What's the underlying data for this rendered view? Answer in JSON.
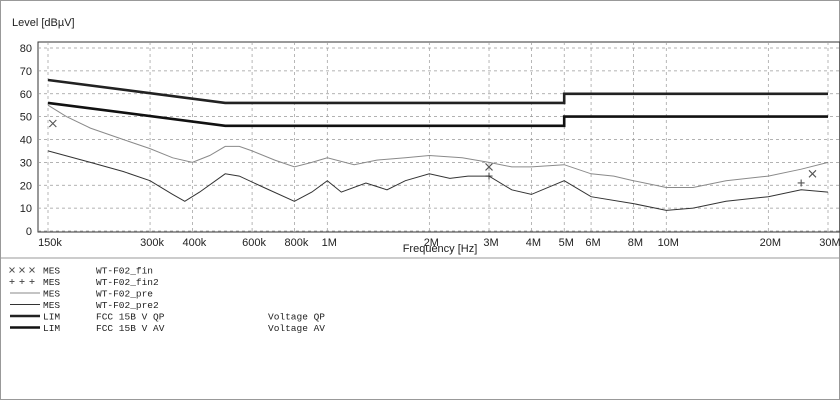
{
  "chart_data": {
    "type": "line",
    "ylabel": "Level [dBµV]",
    "xlabel": "Frequency [Hz]",
    "xscale": "log",
    "grid": true,
    "xlim": [
      150000,
      30000000
    ],
    "ylim": [
      0,
      80
    ],
    "yticks": [
      0,
      10,
      20,
      30,
      40,
      50,
      60,
      70,
      80
    ],
    "xticks": [
      {
        "value": 150000,
        "label": "150k"
      },
      {
        "value": 300000,
        "label": "300k"
      },
      {
        "value": 400000,
        "label": "400k"
      },
      {
        "value": 600000,
        "label": "600k"
      },
      {
        "value": 800000,
        "label": "800k"
      },
      {
        "value": 1000000,
        "label": "1M"
      },
      {
        "value": 2000000,
        "label": "2M"
      },
      {
        "value": 3000000,
        "label": "3M"
      },
      {
        "value": 4000000,
        "label": "4M"
      },
      {
        "value": 5000000,
        "label": "5M"
      },
      {
        "value": 6000000,
        "label": "6M"
      },
      {
        "value": 8000000,
        "label": "8M"
      },
      {
        "value": 10000000,
        "label": "10M"
      },
      {
        "value": 20000000,
        "label": "20M"
      },
      {
        "value": 30000000,
        "label": "30M"
      }
    ],
    "series": [
      {
        "name": "WT-F02_fin",
        "detector": "MES",
        "mark": "x",
        "color": "#555555",
        "x": [
          155000,
          3000000,
          27000000
        ],
        "values": [
          47,
          28,
          25
        ]
      },
      {
        "name": "WT-F02_fin2",
        "detector": "MES",
        "mark": "+",
        "color": "#555555",
        "x": [
          3000000,
          25000000
        ],
        "values": [
          24,
          21
        ]
      },
      {
        "name": "WT-F02_pre",
        "detector": "MES",
        "mark": "line",
        "color": "#8a8a8a",
        "x": [
          150000,
          170000,
          200000,
          250000,
          300000,
          350000,
          400000,
          450000,
          500000,
          550000,
          600000,
          700000,
          800000,
          900000,
          1000000,
          1200000,
          1400000,
          1700000,
          2000000,
          2500000,
          3000000,
          3500000,
          4000000,
          5000000,
          6000000,
          7000000,
          8000000,
          10000000,
          12000000,
          15000000,
          20000000,
          25000000,
          30000000
        ],
        "values": [
          55,
          50,
          45,
          40,
          36,
          32,
          30,
          33,
          37,
          37,
          35,
          31,
          28,
          30,
          32,
          29,
          31,
          32,
          33,
          32,
          30,
          28,
          28,
          29,
          25,
          24,
          22,
          19,
          19,
          22,
          24,
          27,
          30
        ]
      },
      {
        "name": "WT-F02_pre2",
        "detector": "MES",
        "mark": "line",
        "color": "#333333",
        "x": [
          150000,
          200000,
          250000,
          300000,
          350000,
          380000,
          420000,
          500000,
          550000,
          650000,
          800000,
          900000,
          1000000,
          1100000,
          1300000,
          1500000,
          1700000,
          2000000,
          2300000,
          2600000,
          3000000,
          3500000,
          4000000,
          5000000,
          6000000,
          8000000,
          10000000,
          12000000,
          15000000,
          20000000,
          25000000,
          30000000
        ],
        "values": [
          35,
          30,
          26,
          22,
          16,
          13,
          17,
          25,
          24,
          19,
          13,
          17,
          22,
          17,
          21,
          18,
          22,
          25,
          23,
          24,
          24,
          18,
          16,
          22,
          15,
          12,
          9,
          10,
          13,
          15,
          18,
          17
        ]
      },
      {
        "name": "FCC 15B V QP",
        "detector": "LIM",
        "mark": "limit",
        "description": "Voltage QP",
        "color": "#222222",
        "x": [
          150000,
          500000,
          5000000,
          5000000,
          30000000
        ],
        "values": [
          66,
          56,
          56,
          60,
          60
        ]
      },
      {
        "name": "FCC 15B V AV",
        "detector": "LIM",
        "mark": "limit",
        "description": "Voltage AV",
        "color": "#111111",
        "x": [
          150000,
          500000,
          5000000,
          5000000,
          30000000
        ],
        "values": [
          56,
          46,
          46,
          50,
          50
        ]
      }
    ]
  }
}
